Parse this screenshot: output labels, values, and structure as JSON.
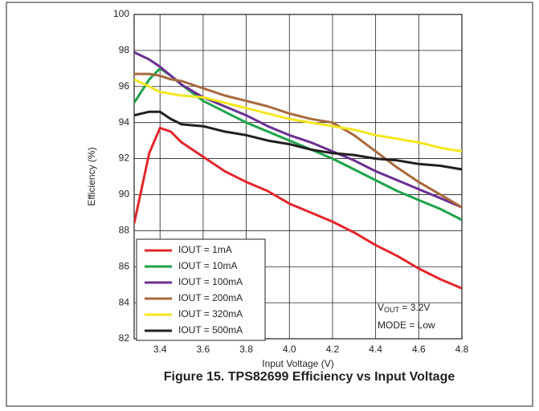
{
  "chart_data": {
    "type": "line",
    "title": "Figure 15. TPS82699 Efficiency vs Input Voltage",
    "xlabel": "Input Voltage (V)",
    "ylabel": "Efficiency (%)",
    "x": [
      3.28,
      3.35,
      3.4,
      3.45,
      3.5,
      3.6,
      3.7,
      3.8,
      3.9,
      4.0,
      4.1,
      4.2,
      4.3,
      4.4,
      4.5,
      4.6,
      4.7,
      4.8
    ],
    "series": [
      {
        "name": "IOUT = 1mA",
        "color": "#e3262b",
        "values": [
          88.4,
          92.3,
          93.7,
          93.5,
          92.9,
          92.1,
          91.3,
          90.7,
          90.2,
          89.5,
          89.0,
          88.5,
          87.9,
          87.2,
          86.6,
          85.9,
          85.3,
          84.8
        ]
      },
      {
        "name": "IOUT = 10mA",
        "color": "#1fa34a",
        "values": [
          95.1,
          96.4,
          97.0,
          96.6,
          96.1,
          95.2,
          94.6,
          94.0,
          93.5,
          93.0,
          92.5,
          92.0,
          91.4,
          90.8,
          90.2,
          89.7,
          89.2,
          88.6
        ]
      },
      {
        "name": "IOUT = 100mA",
        "color": "#6a2f93",
        "values": [
          97.9,
          97.5,
          97.1,
          96.6,
          96.1,
          95.4,
          94.9,
          94.4,
          93.8,
          93.3,
          92.9,
          92.4,
          91.9,
          91.3,
          90.8,
          90.3,
          89.8,
          89.3
        ]
      },
      {
        "name": "IOUT = 200mA",
        "color": "#a8693c",
        "values": [
          96.7,
          96.7,
          96.6,
          96.4,
          96.3,
          95.9,
          95.5,
          95.2,
          94.9,
          94.5,
          94.2,
          94.0,
          93.3,
          92.4,
          91.5,
          90.7,
          90.0,
          89.3
        ]
      },
      {
        "name": "IOUT = 320mA",
        "color": "#f5e61c",
        "values": [
          96.4,
          96.0,
          95.7,
          95.6,
          95.5,
          95.4,
          95.1,
          94.8,
          94.5,
          94.2,
          94.0,
          93.8,
          93.6,
          93.3,
          93.1,
          92.9,
          92.6,
          92.4
        ]
      },
      {
        "name": "IOUT = 500mA",
        "color": "#231f20",
        "values": [
          94.4,
          94.6,
          94.6,
          94.2,
          93.9,
          93.8,
          93.5,
          93.3,
          93.0,
          92.8,
          92.5,
          92.3,
          92.2,
          92.0,
          91.9,
          91.7,
          91.6,
          91.4
        ]
      }
    ],
    "xlim": [
      3.28,
      4.8
    ],
    "xticks": [
      3.4,
      3.6,
      3.8,
      {
        "value": 4,
        "label": "4.0"
      },
      4.2,
      4.4,
      4.6,
      4.8
    ],
    "ylim": [
      82,
      100
    ],
    "yticks": [
      82,
      84,
      86,
      88,
      90,
      92,
      94,
      96,
      98,
      100
    ],
    "grid": true,
    "legend": "lower left",
    "vout_label": {
      "main": "V",
      "sub": "OUT",
      "after": " = 3.2V"
    },
    "mode_label": "MODE = Low"
  }
}
